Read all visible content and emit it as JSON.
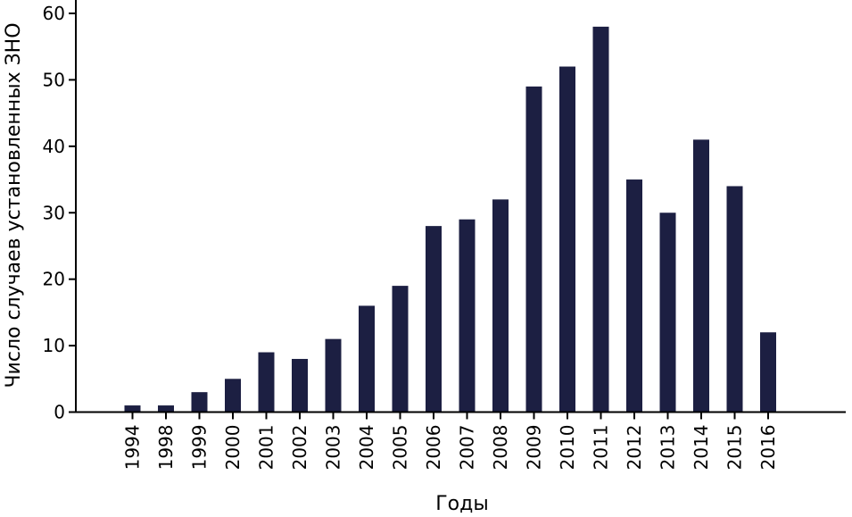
{
  "chart_data": {
    "type": "bar",
    "title": "",
    "xlabel": "Годы",
    "ylabel": "Число случаев установленных ЗНО",
    "categories": [
      "1994",
      "1998",
      "1999",
      "2000",
      "2001",
      "2002",
      "2003",
      "2004",
      "2005",
      "2006",
      "2007",
      "2008",
      "2009",
      "2010",
      "2011",
      "2012",
      "2013",
      "2014",
      "2015",
      "2016"
    ],
    "values": [
      1,
      1,
      3,
      5,
      9,
      8,
      11,
      16,
      19,
      28,
      29,
      32,
      49,
      52,
      58,
      35,
      30,
      41,
      34,
      12
    ],
    "ylim": [
      0,
      60
    ],
    "yticks": [
      0,
      10,
      20,
      30,
      40,
      50,
      60
    ],
    "grid": false,
    "legend": "none",
    "bar_color": "#1c1f42"
  }
}
